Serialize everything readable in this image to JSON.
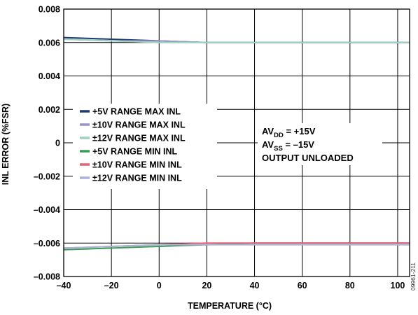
{
  "chart_data": {
    "type": "line",
    "xlabel": "TEMPERATURE (°C)",
    "ylabel": "INL ERROR (%FSR)",
    "xlim": [
      -40,
      105
    ],
    "ylim": [
      -0.008,
      0.008
    ],
    "x_ticks": [
      -40,
      -20,
      0,
      20,
      40,
      60,
      80,
      100
    ],
    "x_tick_labels": [
      "–40",
      "–20",
      "0",
      "20",
      "40",
      "60",
      "80",
      "100"
    ],
    "y_ticks": [
      0.008,
      0.006,
      0.004,
      0.002,
      0,
      -0.002,
      -0.004,
      -0.006,
      -0.008
    ],
    "y_tick_labels": [
      "0.008",
      "0.006",
      "0.004",
      "0.002",
      "0",
      "–0.002",
      "–0.004",
      "–0.006",
      "–0.008"
    ],
    "grid": true,
    "legend_position": "center-left",
    "x": [
      -40,
      -20,
      0,
      20,
      40,
      60,
      80,
      105
    ],
    "series": [
      {
        "name": "+5V RANGE MAX INL",
        "color": "#1f3a6e",
        "values": [
          0.0063,
          0.0062,
          0.0061,
          0.006,
          0.006,
          0.006,
          0.006,
          0.006
        ]
      },
      {
        "name": "±10V RANGE MAX INL",
        "color": "#9a93c4",
        "values": [
          0.0062,
          0.0061,
          0.0061,
          0.006,
          0.006,
          0.006,
          0.006,
          0.006
        ]
      },
      {
        "name": "±12V RANGE MAX INL",
        "color": "#9fd1c0",
        "values": [
          0.0062,
          0.0061,
          0.006,
          0.006,
          0.006,
          0.006,
          0.006,
          0.006
        ]
      },
      {
        "name": "+5V RANGE MIN INL",
        "color": "#3a9a5a",
        "values": [
          -0.0064,
          -0.0063,
          -0.0062,
          -0.0061,
          -0.006,
          -0.006,
          -0.006,
          -0.006
        ]
      },
      {
        "name": "±10V RANGE MIN INL",
        "color": "#e8607a",
        "values": [
          -0.0063,
          -0.0062,
          -0.0061,
          -0.006,
          -0.006,
          -0.006,
          -0.006,
          -0.006
        ]
      },
      {
        "name": "±12V RANGE MIN INL",
        "color": "#a9b4d8",
        "values": [
          -0.0063,
          -0.0062,
          -0.0061,
          -0.0061,
          -0.0061,
          -0.0061,
          -0.0061,
          -0.0061
        ]
      }
    ],
    "annotation": {
      "line1_main": "AV",
      "line1_sub": "DD",
      "line1_rest": " = +15V",
      "line2_main": "AV",
      "line2_sub": "SS",
      "line2_rest": " = –15V",
      "line3": "OUTPUT UNLOADED"
    },
    "figure_id": "09961-211"
  }
}
